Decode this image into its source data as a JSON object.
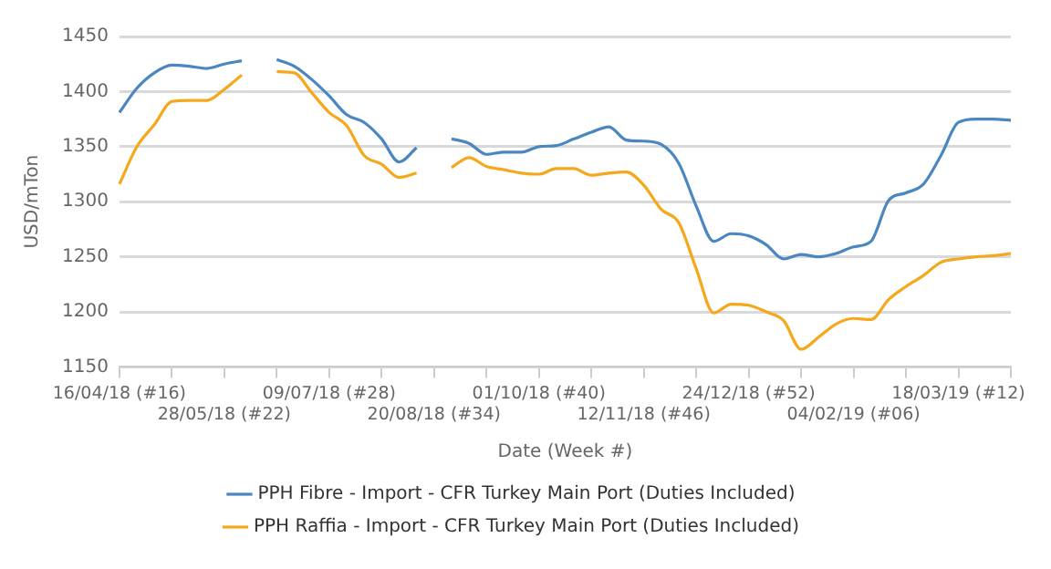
{
  "chart_data": {
    "type": "line",
    "xlabel": "Date (Week #)",
    "ylabel": "USD/mTon",
    "categories": [
      "16/04/18 (#16)",
      null,
      null,
      null,
      null,
      null,
      "28/05/18 (#22)",
      null,
      null,
      null,
      null,
      null,
      "09/07/18 (#28)",
      null,
      null,
      null,
      null,
      null,
      "20/08/18 (#34)",
      null,
      null,
      null,
      null,
      null,
      "01/10/18 (#40)",
      null,
      null,
      null,
      null,
      null,
      "12/11/18 (#46)",
      null,
      null,
      null,
      null,
      null,
      "24/12/18 (#52)",
      null,
      null,
      null,
      null,
      null,
      "04/02/19 (#06)",
      null,
      null,
      null,
      null,
      null,
      "18/03/19 (#12)",
      null,
      null,
      null
    ],
    "series": [
      {
        "name": "PPH Fibre - Import - CFR Turkey Main Port (Duties Included)",
        "color": "#4a87c0",
        "values": [
          1381,
          1403,
          1417,
          1424,
          1423,
          1421,
          1425,
          1428,
          null,
          1429,
          1423,
          1411,
          1396,
          1379,
          1372,
          1357,
          1336,
          1349,
          null,
          1357,
          1353,
          1343,
          1345,
          1345,
          1350,
          1351,
          1357,
          1363,
          1368,
          1356,
          1355,
          1352,
          1335,
          1296,
          1264,
          1271,
          1269,
          1261,
          1248,
          1252,
          1250,
          1253,
          1259,
          1264,
          1301,
          1308,
          1316,
          1342,
          1372,
          1375,
          1375,
          1374
        ]
      },
      {
        "name": "PPH Raffia - Import - CFR Turkey Main Port (Duties Included)",
        "color": "#f5a81c",
        "values": [
          1316,
          1350,
          1370,
          1391,
          1392,
          1392,
          1402,
          1415,
          null,
          1418,
          1417,
          1399,
          1381,
          1369,
          1342,
          1334,
          1322,
          1326,
          null,
          1331,
          1340,
          1332,
          1329,
          1326,
          1325,
          1330,
          1330,
          1324,
          1326,
          1327,
          1315,
          1293,
          1281,
          1239,
          1199,
          1207,
          1206,
          1200,
          1192,
          1166,
          1177,
          1189,
          1194,
          1193,
          1211,
          1223,
          1233,
          1245,
          1248,
          1250,
          1251,
          1253
        ]
      }
    ],
    "ylim": [
      1150,
      1450
    ],
    "yticks": [
      1150,
      1200,
      1250,
      1300,
      1350,
      1400,
      1450
    ],
    "grid": "y",
    "legend": "bottom",
    "marker": "none"
  }
}
